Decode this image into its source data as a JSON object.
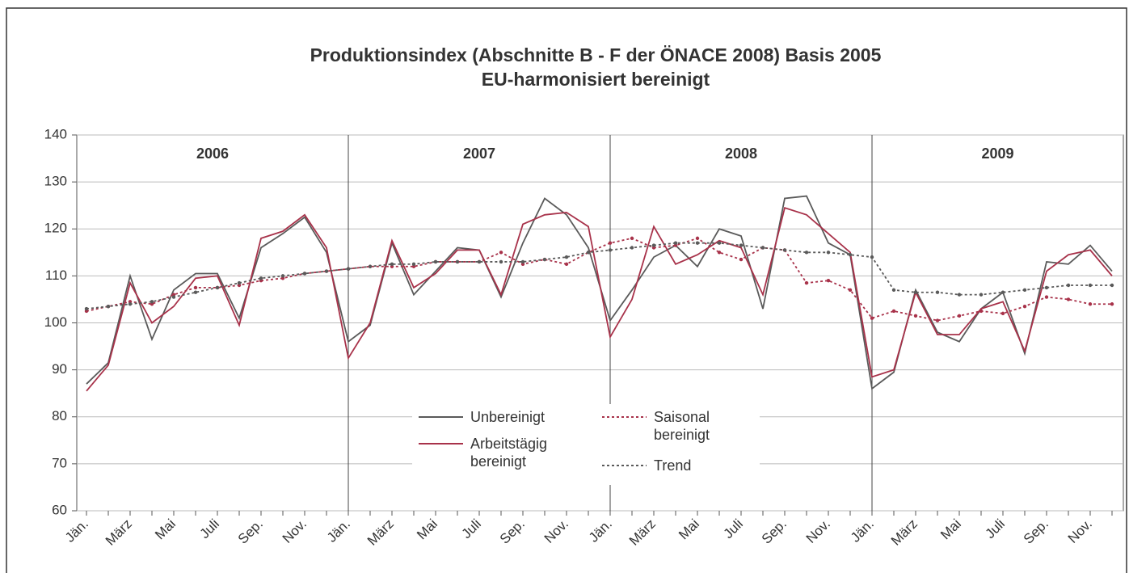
{
  "chart_data": {
    "type": "line",
    "title": "Produktionsindex (Abschnitte B - F der ÖNACE 2008) Basis 2005",
    "subtitle": "EU-harmonisiert bereinigt",
    "years": [
      "2006",
      "2007",
      "2008",
      "2009"
    ],
    "categories": [
      "Jän.",
      null,
      "März",
      null,
      "Mai",
      null,
      "Juli",
      null,
      "Sep.",
      null,
      "Nov.",
      null,
      "Jän.",
      null,
      "März",
      null,
      "Mai",
      null,
      "Juli",
      null,
      "Sep.",
      null,
      "Nov.",
      null,
      "Jän.",
      null,
      "März",
      null,
      "Mai",
      null,
      "Juli",
      null,
      "Sep.",
      null,
      "Nov.",
      null,
      "Jän.",
      null,
      "März",
      null,
      "Mai",
      null,
      "Juli",
      null,
      "Sep.",
      null,
      "Nov.",
      null
    ],
    "ylim": [
      60,
      140
    ],
    "yticks": [
      60,
      70,
      80,
      90,
      100,
      110,
      120,
      130,
      140
    ],
    "grid": true,
    "series": [
      {
        "name": "Unbereinigt",
        "color": "#5a5a5a",
        "style": "solid",
        "values": [
          87,
          91.5,
          110,
          96.5,
          107,
          110.5,
          110.5,
          101,
          116,
          119,
          122.5,
          115,
          96,
          99.5,
          117,
          106,
          111,
          116,
          115.5,
          105.5,
          117,
          126.5,
          123,
          116,
          100.5,
          107,
          114,
          116.5,
          112,
          120,
          118.5,
          103,
          126.5,
          127,
          117,
          114.5,
          86,
          89.5,
          107,
          98,
          96,
          103,
          106.5,
          93.5,
          113,
          112.5,
          116.5,
          111
        ]
      },
      {
        "name": "Arbeitstägig bereinigt",
        "color": "#a8324a",
        "style": "solid",
        "values": [
          85.5,
          91,
          108.5,
          100,
          103.5,
          109.5,
          110,
          99.5,
          118,
          119.5,
          123,
          116,
          92.5,
          100,
          117.5,
          107.5,
          110.5,
          115.5,
          115.5,
          106,
          121,
          123,
          123.5,
          120.5,
          97,
          105,
          120.5,
          112.5,
          114.5,
          117.5,
          116,
          106,
          124.5,
          123,
          119,
          115,
          88.5,
          90,
          106.5,
          97.5,
          97.5,
          103,
          104.5,
          94,
          111,
          114.5,
          115.5,
          110
        ]
      },
      {
        "name": "Saisonal bereinigt",
        "color": "#a8324a",
        "style": "dotted",
        "values": [
          102.5,
          103.5,
          104.5,
          104,
          106,
          107.5,
          107.5,
          108,
          109,
          109.5,
          110.5,
          111,
          111.5,
          112,
          112,
          112,
          113,
          113,
          113,
          115,
          112.5,
          113.5,
          112.5,
          115,
          117,
          118,
          116,
          116.5,
          118,
          115,
          113.5,
          116,
          115.5,
          108.5,
          109,
          107,
          101,
          102.5,
          101.5,
          100.5,
          101.5,
          102.5,
          102,
          103.5,
          105.5,
          105,
          104,
          104
        ]
      },
      {
        "name": "Trend",
        "color": "#5a5a5a",
        "style": "dotted",
        "values": [
          103,
          103.5,
          104,
          104.5,
          105.5,
          106.5,
          107.5,
          108.5,
          109.5,
          110,
          110.5,
          111,
          111.5,
          112,
          112.5,
          112.5,
          113,
          113,
          113,
          113,
          113,
          113.5,
          114,
          115,
          115.5,
          116,
          116.5,
          117,
          117,
          117,
          116.5,
          116,
          115.5,
          115,
          115,
          114.5,
          114,
          107,
          106.5,
          106.5,
          106,
          106,
          106.5,
          107,
          107.5,
          108,
          108,
          108
        ]
      }
    ]
  }
}
